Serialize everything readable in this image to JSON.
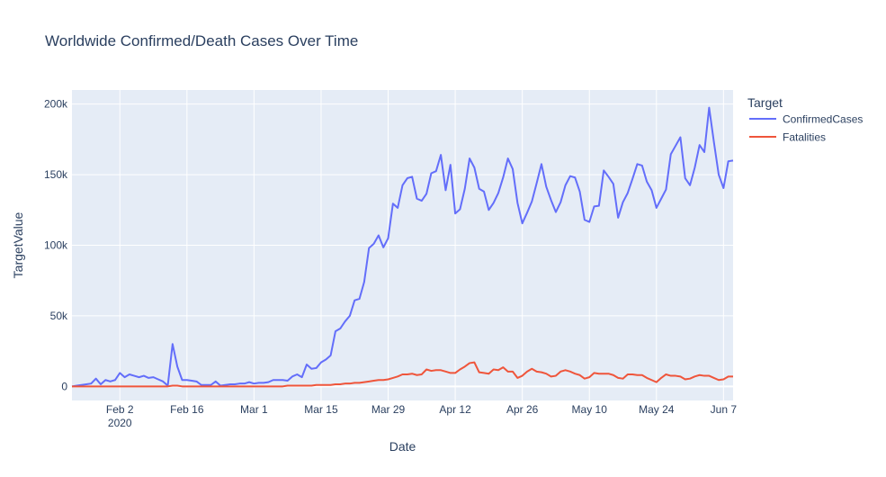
{
  "chart_data": {
    "type": "line",
    "title": "Worldwide Confirmed/Death Cases Over Time",
    "xlabel": "Date",
    "ylabel": "TargetValue",
    "legend_title": "Target",
    "legend_position": "top-right",
    "grid": true,
    "x_start": "2020-01-23",
    "x_range": [
      "2020-01-23",
      "2020-06-09"
    ],
    "ylim": [
      -10000,
      210000
    ],
    "x_ticks": [
      {
        "date": "2020-02-02",
        "label": "Feb 2",
        "sublabel": "2020"
      },
      {
        "date": "2020-02-16",
        "label": "Feb 16"
      },
      {
        "date": "2020-03-01",
        "label": "Mar 1"
      },
      {
        "date": "2020-03-15",
        "label": "Mar 15"
      },
      {
        "date": "2020-03-29",
        "label": "Mar 29"
      },
      {
        "date": "2020-04-12",
        "label": "Apr 12"
      },
      {
        "date": "2020-04-26",
        "label": "Apr 26"
      },
      {
        "date": "2020-05-10",
        "label": "May 10"
      },
      {
        "date": "2020-05-24",
        "label": "May 24"
      },
      {
        "date": "2020-06-07",
        "label": "Jun 7"
      }
    ],
    "y_ticks": [
      {
        "value": 0,
        "label": "0"
      },
      {
        "value": 50000,
        "label": "50k"
      },
      {
        "value": 100000,
        "label": "100k"
      },
      {
        "value": 150000,
        "label": "150k"
      },
      {
        "value": 200000,
        "label": "200k"
      }
    ],
    "series": [
      {
        "name": "ConfirmedCases",
        "color": "#636efa",
        "values": [
          0,
          500,
          1000,
          1500,
          2000,
          5500,
          1500,
          4500,
          3500,
          4500,
          9500,
          6500,
          8500,
          7500,
          6500,
          7500,
          6000,
          6500,
          5000,
          3500,
          500,
          30000,
          14000,
          4500,
          4500,
          4000,
          3500,
          1000,
          1000,
          1000,
          3500,
          500,
          1000,
          1500,
          1500,
          2000,
          2000,
          3000,
          2000,
          2500,
          2500,
          3000,
          4500,
          4500,
          4500,
          4000,
          7000,
          8500,
          6500,
          15500,
          12500,
          13000,
          17000,
          19000,
          22000,
          39000,
          41000,
          46000,
          50000,
          61000,
          62000,
          74000,
          98000,
          101000,
          107000,
          98500,
          105000,
          129500,
          126500,
          142500,
          147500,
          148500,
          133000,
          131500,
          136500,
          151000,
          152500,
          164000,
          139000,
          157000,
          122500,
          125500,
          140000,
          161500,
          155000,
          140000,
          138000,
          125000,
          130000,
          137000,
          148000,
          161500,
          154000,
          130000,
          115500,
          123000,
          131000,
          144000,
          157500,
          141500,
          132000,
          123500,
          130500,
          142500,
          149000,
          148000,
          138000,
          118000,
          116500,
          127500,
          128000,
          153000,
          148500,
          143500,
          119500,
          130500,
          137000,
          147000,
          157500,
          156500,
          145000,
          139000,
          126500,
          133000,
          139500,
          164500,
          170500,
          176500,
          147500,
          142500,
          155000,
          171000,
          166000,
          197500,
          173000,
          150000,
          140500,
          159500,
          160000
        ]
      },
      {
        "name": "Fatalities",
        "color": "#ef553b",
        "values": [
          0,
          0,
          0,
          0,
          0,
          0,
          0,
          0,
          0,
          0,
          0,
          0,
          0,
          0,
          0,
          0,
          0,
          0,
          0,
          0,
          0,
          500,
          500,
          0,
          0,
          0,
          0,
          0,
          0,
          0,
          0,
          0,
          0,
          0,
          0,
          0,
          0,
          0,
          0,
          0,
          0,
          0,
          0,
          0,
          0,
          500,
          500,
          500,
          500,
          500,
          500,
          1000,
          1000,
          1000,
          1000,
          1500,
          1500,
          2000,
          2000,
          2500,
          2500,
          3000,
          3500,
          4000,
          4500,
          4500,
          5000,
          6000,
          7000,
          8500,
          8500,
          9000,
          8000,
          8500,
          12000,
          11000,
          11500,
          11500,
          10500,
          9500,
          9500,
          12000,
          14000,
          16500,
          17000,
          10000,
          9500,
          9000,
          12000,
          11500,
          13500,
          10500,
          10500,
          6000,
          7500,
          10500,
          12500,
          10500,
          10000,
          9000,
          7000,
          7500,
          10500,
          11500,
          10500,
          9000,
          8000,
          5500,
          6500,
          9500,
          9000,
          9000,
          9000,
          8000,
          6000,
          5500,
          8500,
          8500,
          8000,
          8000,
          6000,
          4500,
          3000,
          6000,
          8500,
          7500,
          7500,
          7000,
          5000,
          5500,
          7000,
          8000,
          7500,
          7500,
          6000,
          4500,
          5000,
          7000,
          7000
        ]
      }
    ]
  }
}
